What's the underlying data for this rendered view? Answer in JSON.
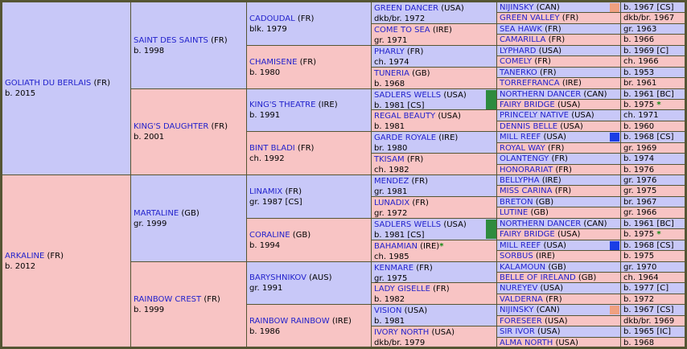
{
  "generations": [
    [
      {
        "name": "GOLIATH DU BERLAIS",
        "country": "(FR)",
        "detail": "b. 2015",
        "sex": "m"
      },
      {
        "name": "ARKALINE",
        "country": "(FR)",
        "detail": "b. 2012",
        "sex": "f"
      }
    ],
    [
      {
        "name": "SAINT DES SAINTS",
        "country": "(FR)",
        "detail": "b. 1998",
        "sex": "m"
      },
      {
        "name": "KING'S DAUGHTER",
        "country": "(FR)",
        "detail": "b. 2001",
        "sex": "f"
      },
      {
        "name": "MARTALINE",
        "country": "(GB)",
        "detail": "gr. 1999",
        "sex": "m"
      },
      {
        "name": "RAINBOW CREST",
        "country": "(FR)",
        "detail": "b. 1999",
        "sex": "f"
      }
    ],
    [
      {
        "name": "CADOUDAL",
        "country": "(FR)",
        "detail": "blk. 1979",
        "sex": "m"
      },
      {
        "name": "CHAMISENE",
        "country": "(FR)",
        "detail": "b. 1980",
        "sex": "f"
      },
      {
        "name": "KING'S THEATRE",
        "country": "(IRE)",
        "detail": "b. 1991",
        "sex": "m"
      },
      {
        "name": "BINT BLADI",
        "country": "(FR)",
        "detail": "ch. 1992",
        "sex": "f"
      },
      {
        "name": "LINAMIX",
        "country": "(FR)",
        "detail": "gr. 1987 [CS]",
        "sex": "m"
      },
      {
        "name": "CORALINE",
        "country": "(GB)",
        "detail": "b. 1994",
        "sex": "f"
      },
      {
        "name": "BARYSHNIKOV",
        "country": "(AUS)",
        "detail": "gr. 1991",
        "sex": "m"
      },
      {
        "name": "RAINBOW RAINBOW",
        "country": "(IRE)",
        "detail": "b. 1986",
        "sex": "f"
      }
    ],
    [
      {
        "name": "GREEN DANCER",
        "country": "(USA)",
        "detail": "dkb/br. 1972",
        "sex": "m"
      },
      {
        "name": "COME TO SEA",
        "country": "(IRE)",
        "detail": "gr. 1971",
        "sex": "f"
      },
      {
        "name": "PHARLY",
        "country": "(FR)",
        "detail": "ch. 1974",
        "sex": "m"
      },
      {
        "name": "TUNERIA",
        "country": "(GB)",
        "detail": "b. 1968",
        "sex": "f"
      },
      {
        "name": "SADLERS WELLS",
        "country": "(USA)",
        "detail": "b. 1981 [CS]",
        "sex": "m",
        "swatch": "#2e8b3e"
      },
      {
        "name": "REGAL BEAUTY",
        "country": "(USA)",
        "detail": "b. 1981",
        "sex": "f"
      },
      {
        "name": "GARDE ROYALE",
        "country": "(IRE)",
        "detail": "br. 1980",
        "sex": "m"
      },
      {
        "name": "TKISAM",
        "country": "(FR)",
        "detail": "ch. 1982",
        "sex": "f"
      },
      {
        "name": "MENDEZ",
        "country": "(FR)",
        "detail": "gr. 1981",
        "sex": "m"
      },
      {
        "name": "LUNADIX",
        "country": "(FR)",
        "detail": "gr. 1972",
        "sex": "f"
      },
      {
        "name": "SADLERS WELLS",
        "country": "(USA)",
        "detail": "b. 1981 [CS]",
        "sex": "m",
        "swatch": "#2e8b3e"
      },
      {
        "name": "BAHAMIAN",
        "country": "(IRE)",
        "detail": "ch. 1985",
        "sex": "f",
        "star": "*"
      },
      {
        "name": "KENMARE",
        "country": "(FR)",
        "detail": "gr. 1975",
        "sex": "m"
      },
      {
        "name": "LADY GISELLE",
        "country": "(FR)",
        "detail": "b. 1982",
        "sex": "f"
      },
      {
        "name": "VISION",
        "country": "(USA)",
        "detail": "b. 1981",
        "sex": "m"
      },
      {
        "name": "IVORY NORTH",
        "country": "(USA)",
        "detail": "dkb/br. 1979",
        "sex": "f"
      }
    ],
    [
      {
        "name": "NIJINSKY",
        "country": "(CAN)",
        "detail": "b. 1967 [CS]",
        "sex": "m",
        "swatch": "#f0a080"
      },
      {
        "name": "GREEN VALLEY",
        "country": "(FR)",
        "detail": "dkb/br. 1967",
        "sex": "f"
      },
      {
        "name": "SEA HAWK",
        "country": "(FR)",
        "detail": "gr. 1963",
        "sex": "m"
      },
      {
        "name": "CAMARILLA",
        "country": "(FR)",
        "detail": "b. 1966",
        "sex": "f"
      },
      {
        "name": "LYPHARD",
        "country": "(USA)",
        "detail": "b. 1969 [C]",
        "sex": "m"
      },
      {
        "name": "COMELY",
        "country": "(FR)",
        "detail": "ch. 1966",
        "sex": "f"
      },
      {
        "name": "TANERKO",
        "country": "(FR)",
        "detail": "b. 1953",
        "sex": "m"
      },
      {
        "name": "TORREFRANCA",
        "country": "(IRE)",
        "detail": "br. 1961",
        "sex": "f"
      },
      {
        "name": "NORTHERN DANCER",
        "country": "(CAN)",
        "detail": "b. 1961 [BC]",
        "sex": "m"
      },
      {
        "name": "FAIRY BRIDGE",
        "country": "(USA)",
        "detail": "b. 1975",
        "sex": "f",
        "star": "*"
      },
      {
        "name": "PRINCELY NATIVE",
        "country": "(USA)",
        "detail": "ch. 1971",
        "sex": "m"
      },
      {
        "name": "DENNIS BELLE",
        "country": "(USA)",
        "detail": "b. 1960",
        "sex": "f"
      },
      {
        "name": "MILL REEF",
        "country": "(USA)",
        "detail": "b. 1968 [CS]",
        "sex": "m",
        "swatch": "#1a3ee6"
      },
      {
        "name": "ROYAL WAY",
        "country": "(FR)",
        "detail": "gr. 1969",
        "sex": "f"
      },
      {
        "name": "OLANTENGY",
        "country": "(FR)",
        "detail": "b. 1974",
        "sex": "m"
      },
      {
        "name": "HONORARIAT",
        "country": "(FR)",
        "detail": "b. 1976",
        "sex": "f"
      },
      {
        "name": "BELLYPHA",
        "country": "(IRE)",
        "detail": "gr. 1976",
        "sex": "m"
      },
      {
        "name": "MISS CARINA",
        "country": "(FR)",
        "detail": "gr. 1975",
        "sex": "f"
      },
      {
        "name": "BRETON",
        "country": "(GB)",
        "detail": "br. 1967",
        "sex": "m"
      },
      {
        "name": "LUTINE",
        "country": "(GB)",
        "detail": "gr. 1966",
        "sex": "f"
      },
      {
        "name": "NORTHERN DANCER",
        "country": "(CAN)",
        "detail": "b. 1961 [BC]",
        "sex": "m"
      },
      {
        "name": "FAIRY BRIDGE",
        "country": "(USA)",
        "detail": "b. 1975",
        "sex": "f",
        "star": "*"
      },
      {
        "name": "MILL REEF",
        "country": "(USA)",
        "detail": "b. 1968 [CS]",
        "sex": "m",
        "swatch": "#1a3ee6"
      },
      {
        "name": "SORBUS",
        "country": "(IRE)",
        "detail": "b. 1975",
        "sex": "f"
      },
      {
        "name": "KALAMOUN",
        "country": "(GB)",
        "detail": "gr. 1970",
        "sex": "m"
      },
      {
        "name": "BELLE OF IRELAND",
        "country": "(GB)",
        "detail": "ch. 1964",
        "sex": "f"
      },
      {
        "name": "NUREYEV",
        "country": "(USA)",
        "detail": "b. 1977 [C]",
        "sex": "m"
      },
      {
        "name": "VALDERNA",
        "country": "(FR)",
        "detail": "b. 1972",
        "sex": "f"
      },
      {
        "name": "NIJINSKY",
        "country": "(CAN)",
        "detail": "b. 1967 [CS]",
        "sex": "m",
        "swatch": "#f0a080"
      },
      {
        "name": "FORESEER",
        "country": "(USA)",
        "detail": "dkb/br. 1969",
        "sex": "f"
      },
      {
        "name": "SIR IVOR",
        "country": "(USA)",
        "detail": "b. 1965 [IC]",
        "sex": "m"
      },
      {
        "name": "ALMA NORTH",
        "country": "(USA)",
        "detail": "b. 1968",
        "sex": "f"
      }
    ]
  ]
}
